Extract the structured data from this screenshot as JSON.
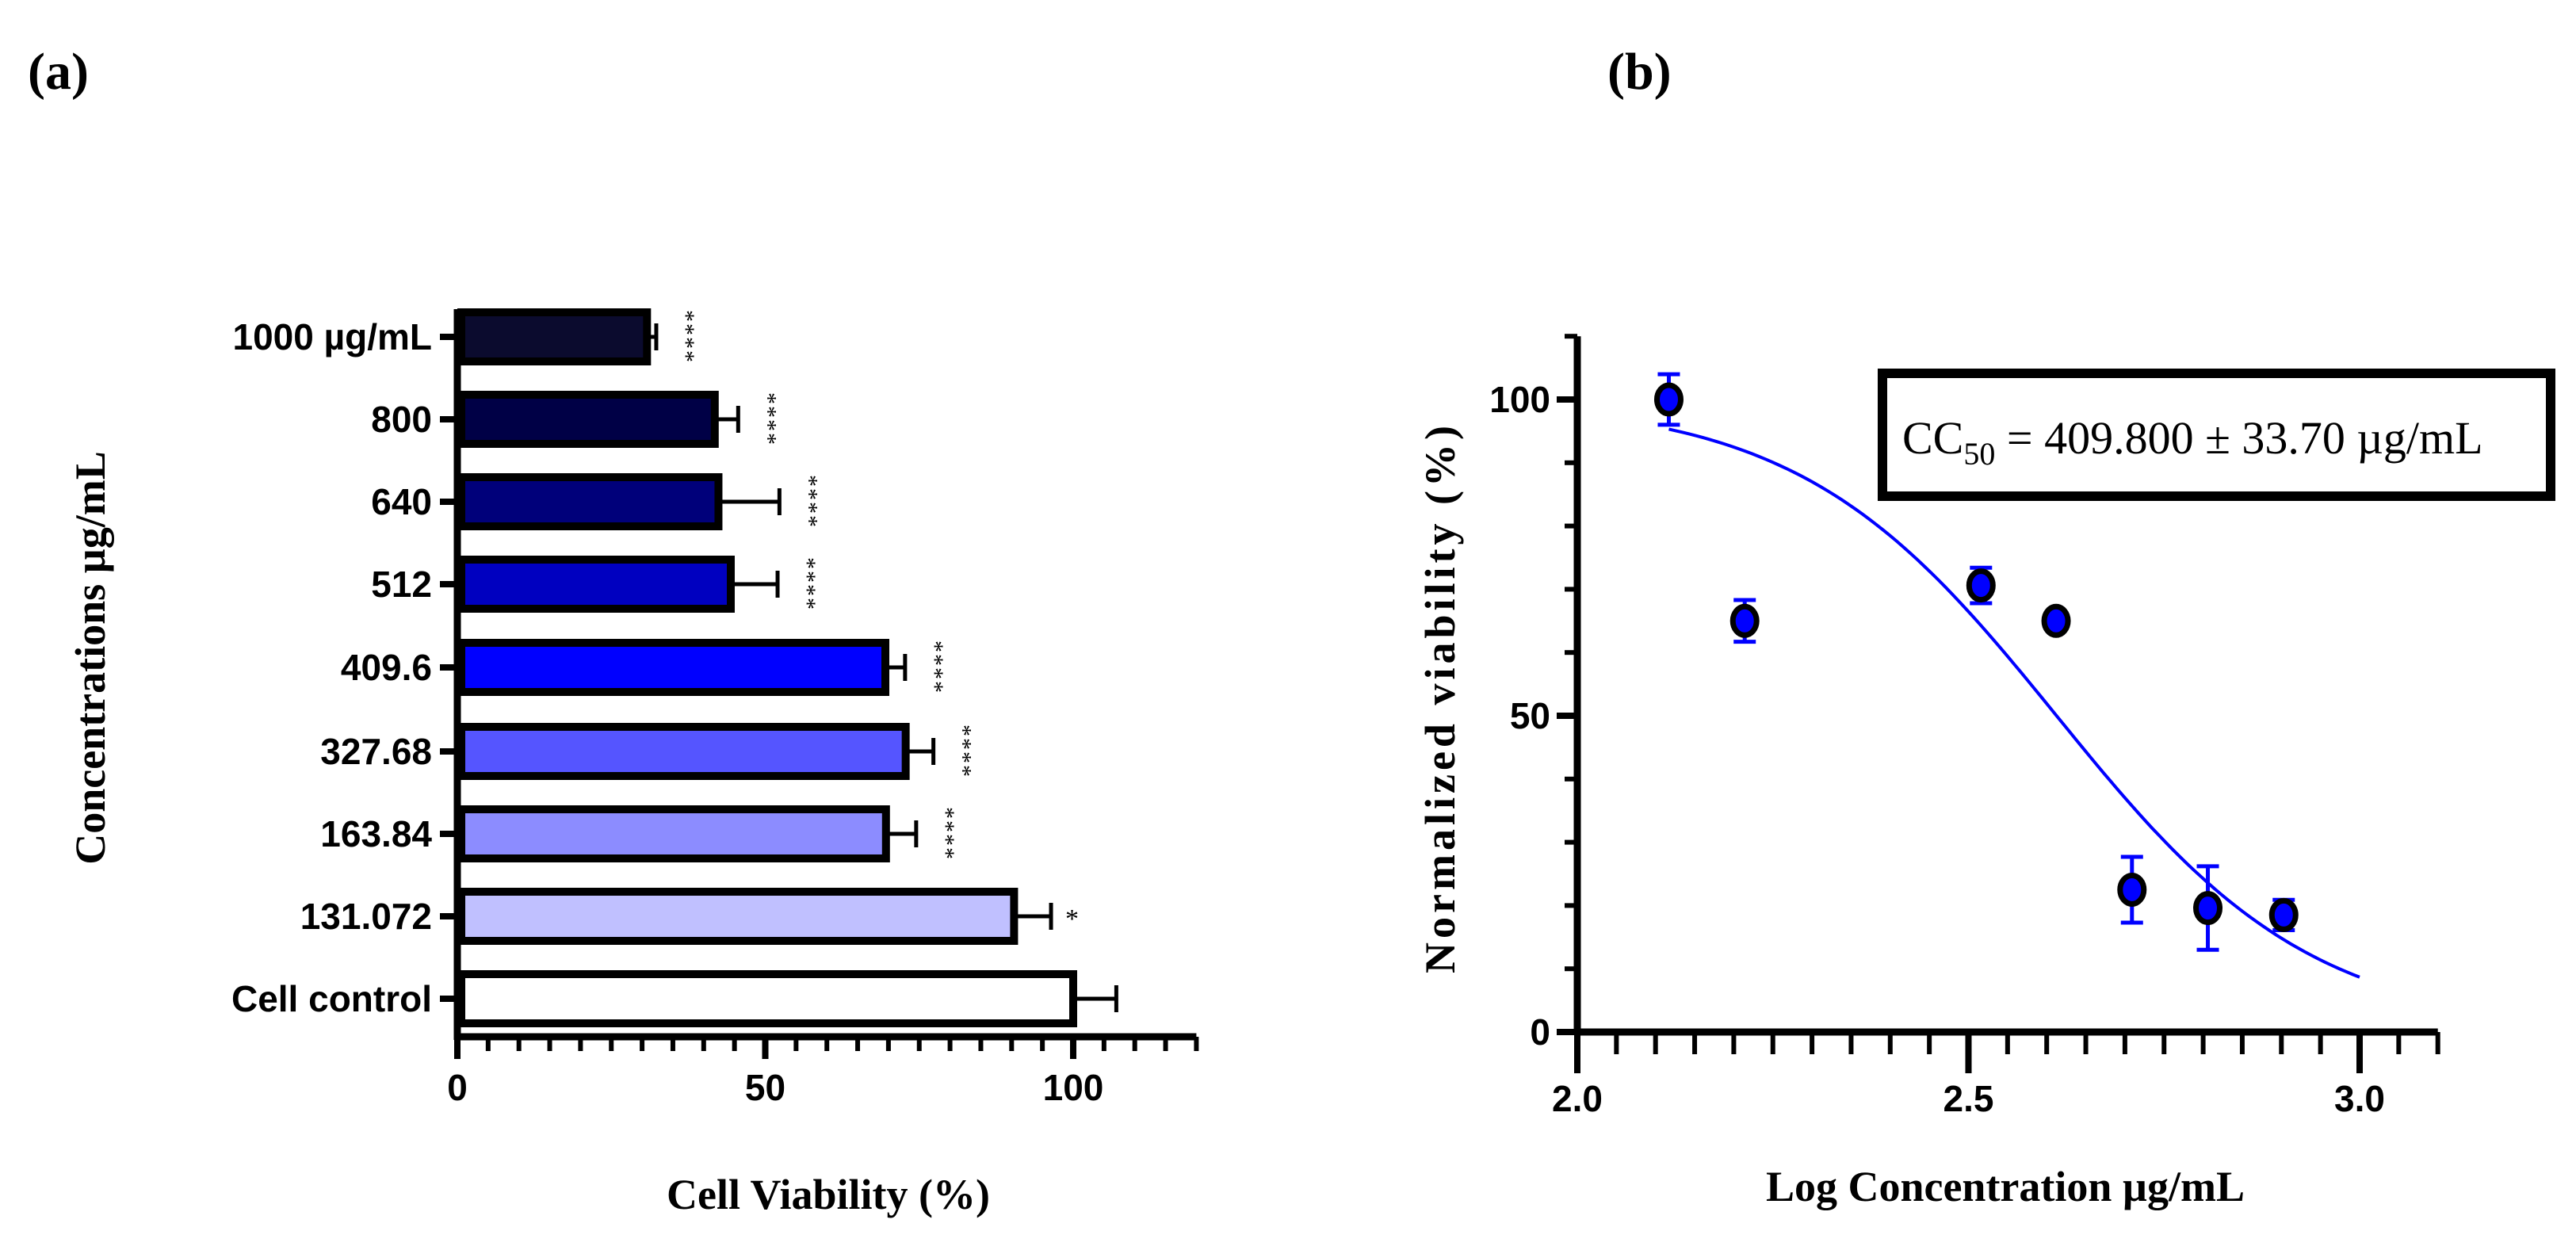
{
  "chart_data": [
    {
      "panel_label": "(a)",
      "type": "bar",
      "orientation": "horizontal",
      "xlabel": "Cell Viability (%)",
      "ylabel": "Concentrations µg/mL",
      "xlim": [
        0,
        120
      ],
      "xticks": [
        "0",
        "50",
        "100"
      ],
      "minor_tick_step": 5,
      "categories": [
        "1000 µg/mL",
        "800",
        "640",
        "512",
        "409.6",
        "327.68",
        "163.84",
        "131.072",
        "Cell control"
      ],
      "values": [
        30.8,
        41.8,
        42.4,
        44.4,
        69.5,
        72.8,
        69.6,
        90.4,
        100
      ],
      "errors": [
        1.5,
        3.8,
        9.9,
        7.6,
        3.2,
        4.5,
        4.9,
        6.0,
        7.0
      ],
      "significance": [
        "****",
        "****",
        "****",
        "****",
        "****",
        "****",
        "****",
        "*",
        ""
      ],
      "colors": [
        "#0b0b2e",
        "#000046",
        "#00007a",
        "#0000c0",
        "#0000ff",
        "#5555ff",
        "#8c8cff",
        "#c0c0ff",
        "#ffffff"
      ]
    },
    {
      "panel_label": "(b)",
      "type": "scatter",
      "xlabel": "Log Concentration µg/mL",
      "ylabel": "Normalized viability (%)",
      "xlim": [
        2.0,
        3.1
      ],
      "ylim": [
        0,
        110
      ],
      "xticks": [
        "2.0",
        "2.5",
        "3.0"
      ],
      "yticks": [
        "0",
        "50",
        "100"
      ],
      "points": [
        {
          "x": 2.117,
          "y": 100.0,
          "err": 4.0
        },
        {
          "x": 2.214,
          "y": 65.0,
          "err": 3.3
        },
        {
          "x": 2.516,
          "y": 70.6,
          "err": 2.8
        },
        {
          "x": 2.612,
          "y": 65.0,
          "err": 0
        },
        {
          "x": 2.709,
          "y": 22.5,
          "err": 5.2
        },
        {
          "x": 2.806,
          "y": 19.6,
          "err": 6.6
        },
        {
          "x": 2.903,
          "y": 18.5,
          "err": 2.4
        }
      ],
      "fit": {
        "model": "sigmoid",
        "top": 100,
        "bottom": 0,
        "log_cc50": 2.6126,
        "hill": 2.64,
        "x_range": [
          2.117,
          3.0
        ]
      },
      "annotation": {
        "prefix": "CC",
        "subscript": "50",
        "text": " = 409.800 ± 33.70 µg/mL"
      },
      "color": "#0000ff"
    }
  ]
}
